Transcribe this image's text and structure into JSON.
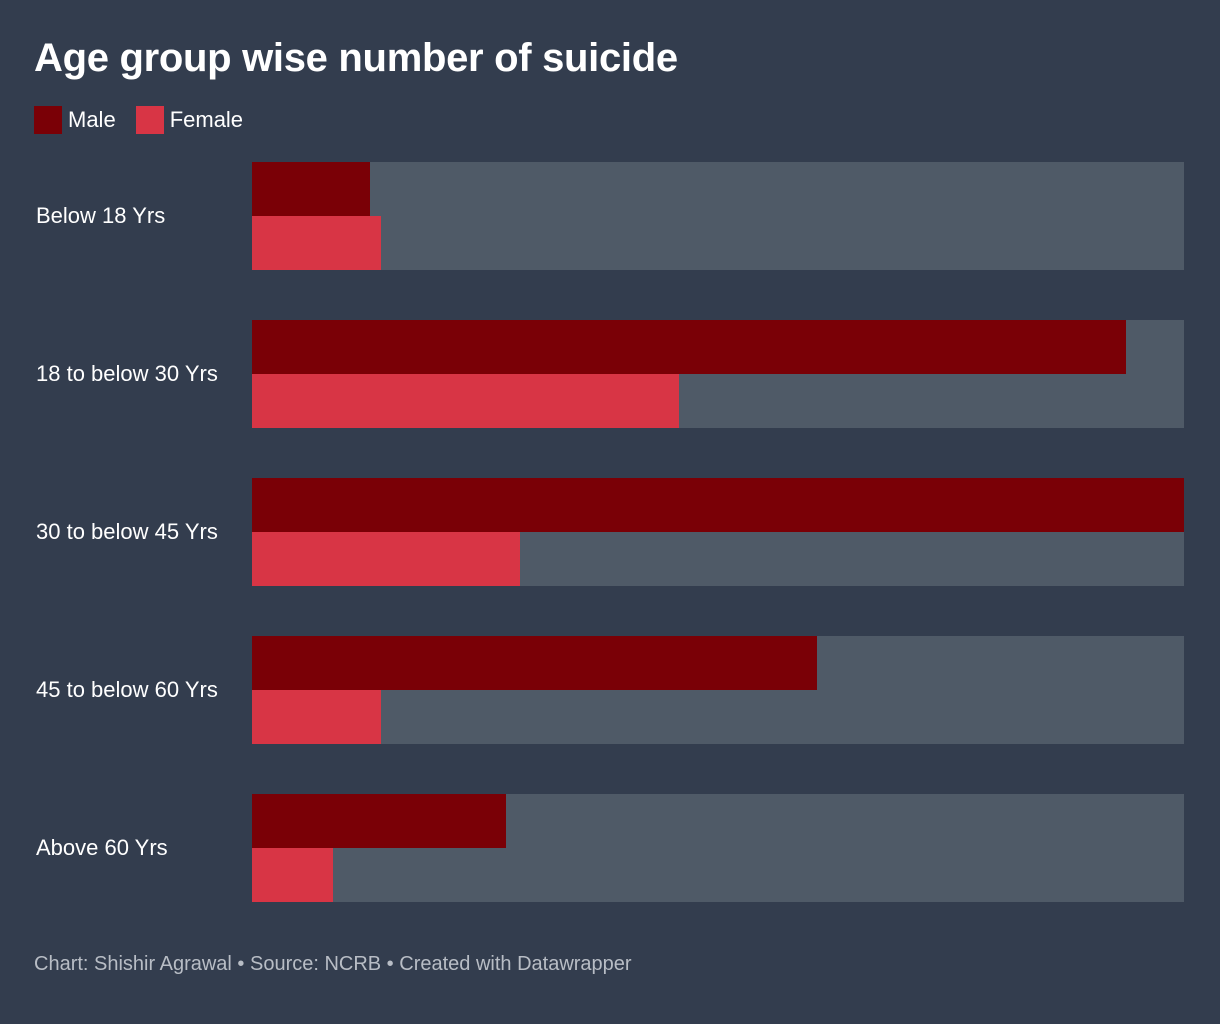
{
  "chart_data": {
    "type": "bar",
    "orientation": "horizontal",
    "title": "Age group wise number of suicide",
    "categories": [
      "Below 18 Yrs",
      "18 to below 30 Yrs",
      "30 to below 45 Yrs",
      "45 to below 60 Yrs",
      "Above 60 Yrs"
    ],
    "series": [
      {
        "name": "Male",
        "color": "#7a0006",
        "values": [
          5100,
          37900,
          40400,
          24500,
          11000
        ]
      },
      {
        "name": "Female",
        "color": "#d83545",
        "values": [
          5600,
          18500,
          11600,
          5600,
          3500
        ]
      }
    ],
    "xlim": [
      0,
      40400
    ],
    "track_color": "#4f5a67",
    "legend_position": "top-left",
    "grid": false,
    "footer": "Chart: Shishir Agrawal • Source: NCRB • Created with Datawrapper"
  }
}
